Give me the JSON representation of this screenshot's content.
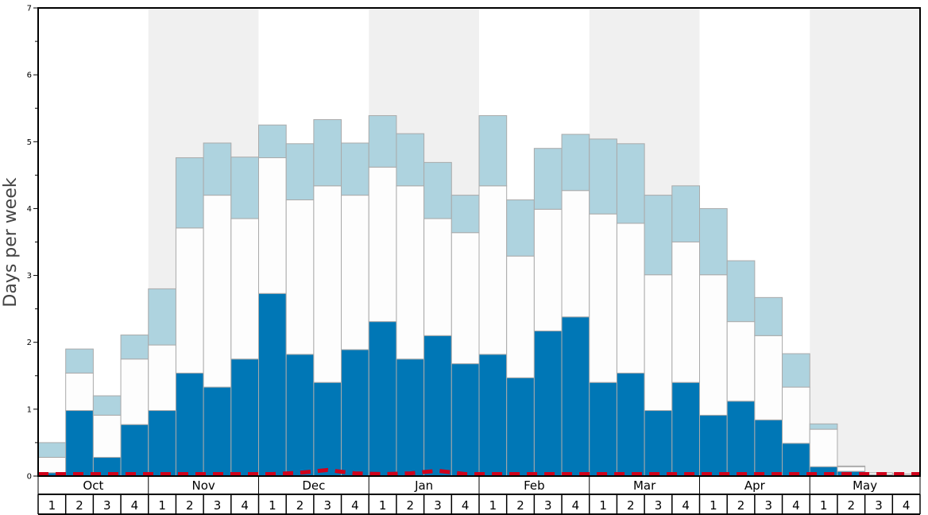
{
  "chart_data": {
    "type": "bar",
    "stacked": true,
    "ylabel": "Days per week",
    "ylim": [
      0,
      7
    ],
    "yticks": [
      "0",
      "1",
      "2",
      "3",
      "4",
      "5",
      "6",
      "7"
    ],
    "months": [
      "Oct",
      "Nov",
      "Dec",
      "Jan",
      "Feb",
      "Mar",
      "Apr",
      "May"
    ],
    "weeks": [
      "1",
      "2",
      "3",
      "4"
    ],
    "month_shading": [
      false,
      true,
      false,
      true,
      false,
      true,
      false,
      true
    ],
    "colors": {
      "bottom": "#0077b6",
      "middle": "#fdfdfd",
      "top": "#aed3df",
      "bar_edge": "#aaaaaa",
      "shade": "#f0f0f0",
      "dashed_line": "#d0021b",
      "axis": "#000000"
    },
    "series": [
      {
        "name": "",
        "color_key": "bottom",
        "values": [
          0.05,
          0.98,
          0.28,
          0.77,
          0.98,
          1.54,
          1.33,
          1.75,
          2.73,
          1.82,
          1.4,
          1.89,
          2.31,
          1.75,
          2.1,
          1.68,
          1.82,
          1.47,
          2.17,
          2.38,
          1.4,
          1.54,
          0.98,
          1.4,
          0.91,
          1.12,
          0.84,
          0.49,
          0.14,
          0.07,
          0.02,
          0.01
        ]
      },
      {
        "name": "",
        "color_key": "middle",
        "values": [
          0.23,
          0.56,
          0.63,
          0.98,
          0.98,
          2.17,
          2.87,
          2.1,
          2.03,
          2.31,
          2.94,
          2.31,
          2.31,
          2.59,
          1.75,
          1.96,
          2.52,
          1.82,
          1.82,
          1.89,
          2.52,
          2.24,
          2.03,
          2.1,
          2.1,
          1.19,
          1.26,
          0.84,
          0.56,
          0.07,
          0.03,
          0.02
        ]
      },
      {
        "name": "",
        "color_key": "top",
        "values": [
          0.22,
          0.36,
          0.29,
          0.36,
          0.84,
          1.05,
          0.78,
          0.92,
          0.49,
          0.84,
          0.99,
          0.78,
          0.77,
          0.78,
          0.84,
          0.56,
          1.05,
          0.84,
          0.91,
          0.84,
          1.12,
          1.19,
          1.19,
          0.84,
          0.99,
          0.91,
          0.57,
          0.5,
          0.08,
          0.01,
          0.0,
          0.0
        ]
      }
    ],
    "dashed_line_values": [
      0.03,
      0.03,
      0.03,
      0.03,
      0.03,
      0.03,
      0.03,
      0.03,
      0.03,
      0.05,
      0.09,
      0.04,
      0.03,
      0.04,
      0.08,
      0.03,
      0.03,
      0.03,
      0.03,
      0.03,
      0.03,
      0.03,
      0.03,
      0.03,
      0.03,
      0.03,
      0.03,
      0.03,
      0.03,
      0.03,
      0.03,
      0.03
    ],
    "grid": false,
    "legend": "none"
  }
}
